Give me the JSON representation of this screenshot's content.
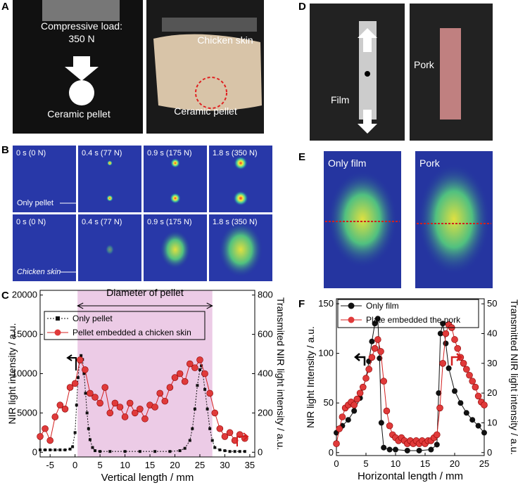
{
  "panels": {
    "A": {
      "label": "A",
      "load_line1": "Compressive load:",
      "load_line2": "350 N",
      "skin": "Chicken skin",
      "pellet_left": "Ceramic pellet",
      "pellet_right": "Ceramic pellet"
    },
    "B": {
      "label": "B",
      "row1": [
        "0 s (0 N)",
        "0.4 s (77 N)",
        "0.9 s (175 N)",
        "1.8 s (350 N)"
      ],
      "row1_note": "Only pellet",
      "row2": [
        "0 s (0 N)",
        "0.4 s (77 N)",
        "0.9 s (175 N)",
        "1.8 s (350 N)"
      ],
      "row2_note": "Chicken skin"
    },
    "D": {
      "label": "D",
      "film": "Film",
      "pork": "Pork"
    },
    "E": {
      "label": "E",
      "left": "Only film",
      "right": "Pork"
    }
  },
  "chart_data": [
    {
      "type": "line",
      "panel_label": "C",
      "annotation": "Diameter of pellet",
      "shaded_x": [
        0.5,
        27.5
      ],
      "x_label": "Vertical length / mm",
      "y_label": "NIR light intensity / a.u.",
      "y2_label": "Transmited NIR light intensity / a.u.",
      "xlim": [
        -7,
        36
      ],
      "xticks": [
        -5,
        0,
        5,
        10,
        15,
        20,
        25,
        30,
        35
      ],
      "ylim": [
        -600,
        20600
      ],
      "yticks": [
        0,
        5000,
        10000,
        15000,
        20000
      ],
      "y2lim": [
        -24,
        824
      ],
      "y2ticks": [
        0,
        200,
        400,
        600,
        800
      ],
      "series": [
        {
          "name": "Only pellet",
          "color": "#111111",
          "marker": "square",
          "dash": true,
          "axis": "y",
          "x": [
            -7,
            -6,
            -5,
            -4,
            -3,
            -2,
            -1,
            -0.5,
            0,
            0.3,
            0.6,
            0.9,
            1.2,
            1.5,
            1.8,
            2.1,
            2.4,
            2.7,
            3,
            3.5,
            4,
            5,
            7,
            10,
            13,
            16,
            19,
            21,
            22,
            23,
            23.5,
            24,
            24.5,
            25,
            25.3,
            25.6,
            26,
            26.5,
            27,
            27.5,
            28,
            29,
            30,
            31,
            32,
            33,
            34
          ],
          "values": [
            300,
            300,
            300,
            300,
            300,
            300,
            400,
            700,
            2500,
            6000,
            9500,
            11500,
            12300,
            11800,
            10000,
            7500,
            5000,
            3000,
            1600,
            600,
            200,
            100,
            100,
            100,
            100,
            100,
            100,
            200,
            500,
            1500,
            3000,
            5500,
            8500,
            10500,
            11000,
            10000,
            8000,
            5500,
            3000,
            1500,
            600,
            300,
            200,
            100,
            100,
            100,
            100
          ]
        },
        {
          "name": "Pellet embedded a chicken skin",
          "color": "#d42020",
          "marker": "circle",
          "dash": false,
          "axis": "y2",
          "x": [
            -7,
            -6,
            -5,
            -4,
            -3,
            -2,
            -1,
            0,
            1,
            2,
            3,
            4,
            5,
            6,
            7,
            8,
            9,
            10,
            11,
            12,
            13,
            14,
            15,
            16,
            17,
            18,
            19,
            20,
            21,
            22,
            23,
            24,
            25,
            26,
            27,
            28,
            29,
            30,
            31,
            32,
            33,
            34
          ],
          "values": [
            80,
            120,
            60,
            180,
            240,
            220,
            330,
            350,
            470,
            420,
            300,
            280,
            250,
            330,
            200,
            250,
            230,
            180,
            250,
            200,
            220,
            170,
            240,
            230,
            300,
            260,
            330,
            380,
            400,
            360,
            450,
            430,
            470,
            400,
            300,
            200,
            120,
            80,
            100,
            60,
            90,
            70
          ]
        }
      ]
    },
    {
      "type": "line",
      "panel_label": "F",
      "x_label": "Horizontal length / mm",
      "y_label": "NIR light Intensity / a.u.",
      "y2_label": "Transmitted NIR light intensity / a.u.",
      "xlim": [
        0,
        25
      ],
      "xticks": [
        0,
        5,
        10,
        15,
        20,
        25
      ],
      "ylim": [
        -3,
        155
      ],
      "yticks": [
        0,
        50,
        100,
        150
      ],
      "y2lim": [
        -1,
        51.7
      ],
      "y2ticks": [
        0,
        10,
        20,
        30,
        40,
        50
      ],
      "series": [
        {
          "name": "Only film",
          "color": "#111111",
          "marker": "circle",
          "dash": false,
          "axis": "y",
          "x": [
            0,
            1,
            2,
            3,
            4,
            5,
            5.5,
            6,
            6.5,
            7,
            7.3,
            7.6,
            8,
            9,
            10,
            12,
            14,
            16,
            17,
            17.3,
            17.6,
            18,
            18.5,
            19,
            20,
            21,
            22,
            23,
            24,
            25
          ],
          "values": [
            20,
            27,
            33,
            42,
            55,
            75,
            92,
            112,
            130,
            135,
            95,
            30,
            5,
            3,
            3,
            2,
            2,
            3,
            8,
            60,
            120,
            130,
            110,
            85,
            62,
            50,
            40,
            33,
            27,
            20
          ]
        },
        {
          "name": "Plate embedded the pork",
          "color": "#d42020",
          "marker": "circle",
          "dash": false,
          "axis": "y2",
          "x": [
            0,
            0.5,
            1,
            1.5,
            2,
            2.5,
            3,
            3.5,
            4,
            4.5,
            5,
            5.5,
            6,
            6.5,
            7,
            7.5,
            8,
            8.5,
            9,
            9.5,
            10,
            10.5,
            11,
            11.5,
            12,
            12.5,
            13,
            13.5,
            14,
            14.5,
            15,
            15.5,
            16,
            16.5,
            17,
            17.5,
            18,
            18.5,
            19,
            19.5,
            20,
            20.5,
            21,
            21.5,
            22,
            22.5,
            23,
            23.5,
            24,
            24.5,
            25
          ],
          "values": [
            3,
            8,
            12,
            15,
            16,
            17,
            16,
            18,
            20,
            22,
            25,
            28,
            32,
            35,
            38,
            34,
            24,
            14,
            9,
            6,
            5,
            4,
            5,
            4,
            3,
            4,
            3,
            4,
            3,
            4,
            3,
            4,
            4,
            5,
            6,
            15,
            30,
            40,
            43,
            42,
            38,
            35,
            32,
            30,
            28,
            26,
            24,
            22,
            19,
            17,
            16
          ]
        }
      ]
    }
  ]
}
